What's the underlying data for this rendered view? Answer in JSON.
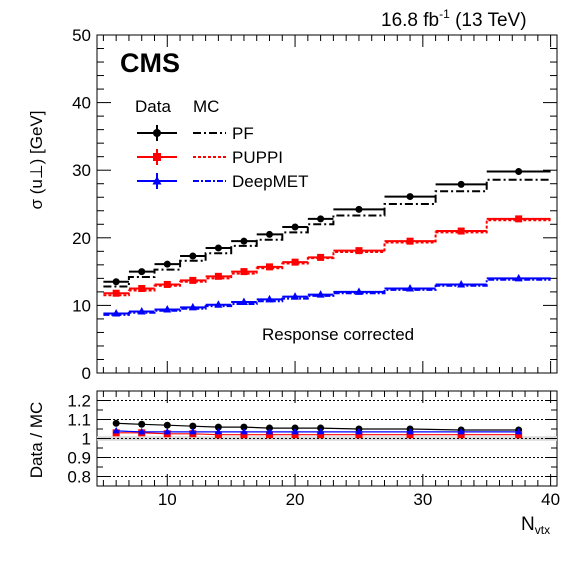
{
  "header": {
    "lumi_value": "16.8 fb",
    "lumi_exp": "-1",
    "energy": "(13 TeV)",
    "experiment": "CMS"
  },
  "legend": {
    "data_header": "Data",
    "mc_header": "MC",
    "entries": [
      "PF",
      "PUPPI",
      "DeepMET"
    ]
  },
  "annotation": "Response corrected",
  "colors": {
    "PF": "#000000",
    "PUPPI": "#ff0000",
    "DeepMET": "#0000ff"
  },
  "chart_data": [
    {
      "type": "line",
      "ylabel": "σ (u⊥) [GeV]",
      "ylim": [
        0,
        50
      ],
      "xlim": [
        4.5,
        40.5
      ],
      "yticks": [
        0,
        10,
        20,
        30,
        40,
        50
      ],
      "bin_edges": [
        5,
        7,
        9,
        11,
        13,
        15,
        17,
        19,
        21,
        23,
        27,
        31,
        35,
        40
      ],
      "x": [
        6,
        8,
        10,
        12,
        14,
        16,
        18,
        20,
        22,
        25,
        29,
        33,
        37.5
      ],
      "series": [
        {
          "name": "PF",
          "data": [
            13.5,
            15.0,
            16.1,
            17.3,
            18.5,
            19.5,
            20.5,
            21.6,
            22.8,
            24.2,
            26.1,
            27.9,
            29.8
          ],
          "mc": [
            12.8,
            14.2,
            15.3,
            16.6,
            17.7,
            18.8,
            19.7,
            20.8,
            22.0,
            23.3,
            25.0,
            26.9,
            28.6
          ]
        },
        {
          "name": "PUPPI",
          "data": [
            11.8,
            12.5,
            13.1,
            13.7,
            14.3,
            15.0,
            15.7,
            16.4,
            17.1,
            18.1,
            19.5,
            21.0,
            22.8
          ],
          "mc": [
            11.5,
            12.2,
            12.9,
            13.5,
            14.0,
            14.7,
            15.5,
            16.2,
            17.0,
            17.9,
            19.3,
            20.8,
            22.6
          ]
        },
        {
          "name": "DeepMET",
          "data": [
            8.8,
            9.1,
            9.4,
            9.7,
            10.1,
            10.5,
            10.9,
            11.3,
            11.6,
            12.0,
            12.5,
            13.1,
            14.0
          ],
          "mc": [
            8.6,
            8.9,
            9.2,
            9.5,
            9.9,
            10.2,
            10.6,
            11.0,
            11.4,
            11.8,
            12.3,
            12.9,
            13.8
          ]
        }
      ]
    },
    {
      "type": "scatter",
      "xlabel": "N_vtx",
      "ylabel": "Data / MC",
      "ylim": [
        0.75,
        1.25
      ],
      "xlim": [
        4.5,
        40.5
      ],
      "yticks": [
        0.8,
        0.9,
        1,
        1.1,
        1.2
      ],
      "xticks": [
        10,
        20,
        30,
        40
      ],
      "x": [
        6,
        8,
        10,
        12,
        14,
        16,
        18,
        20,
        22,
        25,
        29,
        33,
        37.5
      ],
      "series": [
        {
          "name": "PF",
          "values": [
            1.08,
            1.075,
            1.07,
            1.065,
            1.06,
            1.06,
            1.055,
            1.055,
            1.055,
            1.05,
            1.05,
            1.045,
            1.045
          ]
        },
        {
          "name": "PUPPI",
          "values": [
            1.03,
            1.03,
            1.025,
            1.025,
            1.02,
            1.02,
            1.02,
            1.02,
            1.02,
            1.02,
            1.02,
            1.02,
            1.02
          ]
        },
        {
          "name": "DeepMET",
          "values": [
            1.04,
            1.035,
            1.035,
            1.035,
            1.035,
            1.035,
            1.035,
            1.035,
            1.035,
            1.035,
            1.035,
            1.035,
            1.035
          ]
        }
      ]
    }
  ]
}
